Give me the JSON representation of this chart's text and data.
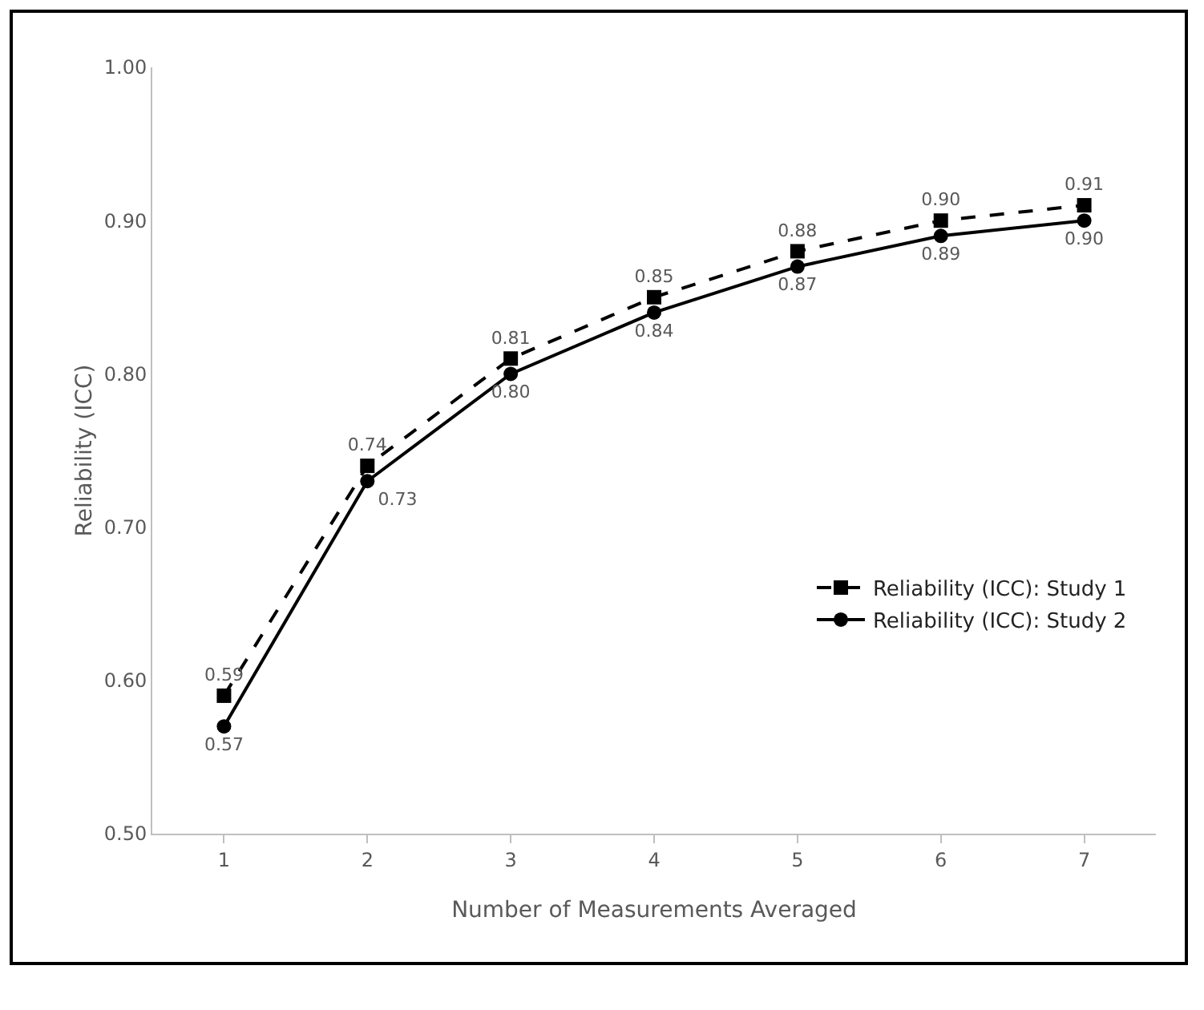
{
  "chart_data": {
    "type": "line",
    "xlabel": "Number of Measurements Averaged",
    "ylabel": "Reliability (ICC)",
    "categories": [
      "1",
      "2",
      "3",
      "4",
      "5",
      "6",
      "7"
    ],
    "series": [
      {
        "name": "Reliability (ICC): Study 1",
        "color": "#000000",
        "marker": "square",
        "line_style": "dashed",
        "values": [
          0.59,
          0.74,
          0.81,
          0.85,
          0.88,
          0.9,
          0.91
        ],
        "value_labels": [
          "0.59",
          "0.74",
          "0.81",
          "0.85",
          "0.88",
          "0.90",
          "0.91"
        ]
      },
      {
        "name": "Reliability (ICC): Study 2",
        "color": "#000000",
        "marker": "circle",
        "line_style": "solid",
        "values": [
          0.57,
          0.73,
          0.8,
          0.84,
          0.87,
          0.89,
          0.9
        ],
        "value_labels": [
          "0.57",
          "0.73",
          "0.80",
          "0.84",
          "0.87",
          "0.89",
          "0.90"
        ]
      }
    ],
    "ylim": [
      0.5,
      1.0
    ],
    "yticks": [
      {
        "value": 0.5,
        "label": "0.50"
      },
      {
        "value": 0.6,
        "label": "0.60"
      },
      {
        "value": 0.7,
        "label": "0.70"
      },
      {
        "value": 0.8,
        "label": "0.80"
      },
      {
        "value": 0.9,
        "label": "0.90"
      },
      {
        "value": 1.0,
        "label": "1.00"
      }
    ],
    "grid": false,
    "legend": "right"
  }
}
